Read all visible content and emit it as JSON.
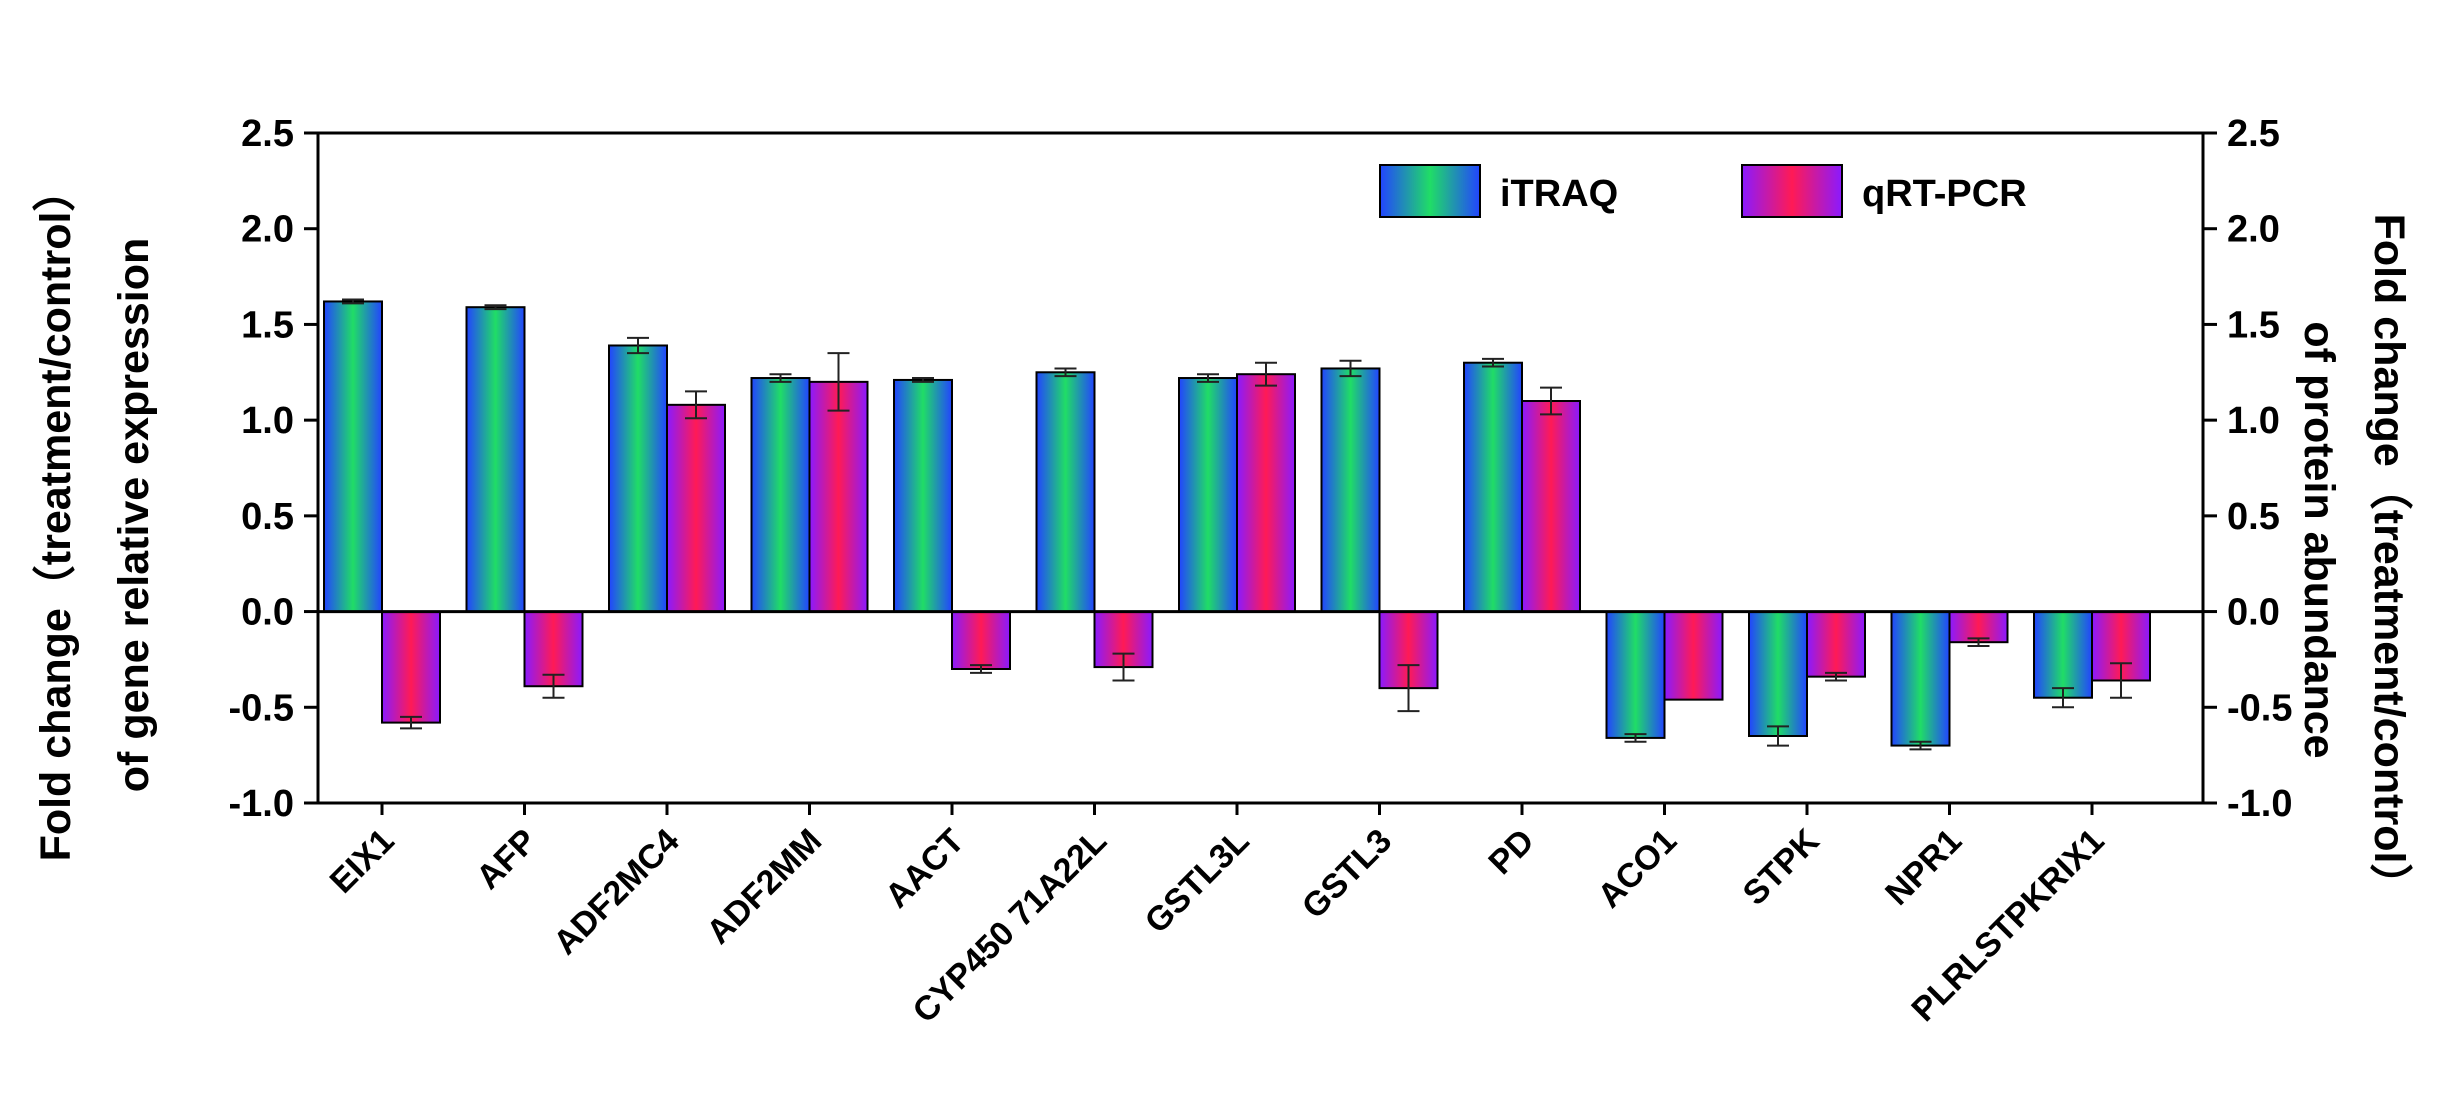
{
  "chart_data": {
    "type": "bar",
    "title": "",
    "categories": [
      "EIX1",
      "AFP",
      "ADF2MC4",
      "ADF2MM",
      "AACT",
      "CYP450 71A22L",
      "GSTL3L",
      "GSTL3",
      "PD",
      "ACO1",
      "STPK",
      "NPR1",
      "PLRLSTPKRIX1"
    ],
    "series": [
      {
        "name": "iTRAQ",
        "values": [
          1.62,
          1.59,
          1.39,
          1.22,
          1.21,
          1.25,
          1.22,
          1.27,
          1.3,
          -0.66,
          -0.65,
          -0.7,
          -0.45
        ],
        "errors": [
          0.01,
          0.01,
          0.04,
          0.02,
          0.01,
          0.02,
          0.02,
          0.04,
          0.02,
          0.02,
          0.05,
          0.02,
          0.05
        ]
      },
      {
        "name": "qRT-PCR",
        "values": [
          -0.58,
          -0.39,
          1.08,
          1.2,
          -0.3,
          -0.29,
          1.24,
          -0.4,
          1.1,
          -0.46,
          -0.34,
          -0.16,
          -0.36
        ],
        "errors": [
          0.03,
          0.06,
          0.07,
          0.15,
          0.02,
          0.07,
          0.06,
          0.12,
          0.07,
          0.0,
          0.02,
          0.02,
          0.09
        ]
      }
    ],
    "ylim": [
      -1.0,
      2.5
    ],
    "yticks": [
      "-1.0",
      "-0.5",
      "0.0",
      "0.5",
      "1.0",
      "1.5",
      "2.0",
      "2.5"
    ],
    "ylabel_left_line1": "Fold change（treatment/control）",
    "ylabel_left_line2": "of gene relative expression",
    "ylabel_right_line1": "Fold change（treatment/control）",
    "ylabel_right_line2": "of protein abundance",
    "legend_position": "top-right",
    "colors": {
      "itraq_gradient": [
        "#2244ff",
        "#20dd66",
        "#2244ff"
      ],
      "qrt_gradient": [
        "#8a1aff",
        "#ff1a55",
        "#8a1aff"
      ]
    }
  }
}
